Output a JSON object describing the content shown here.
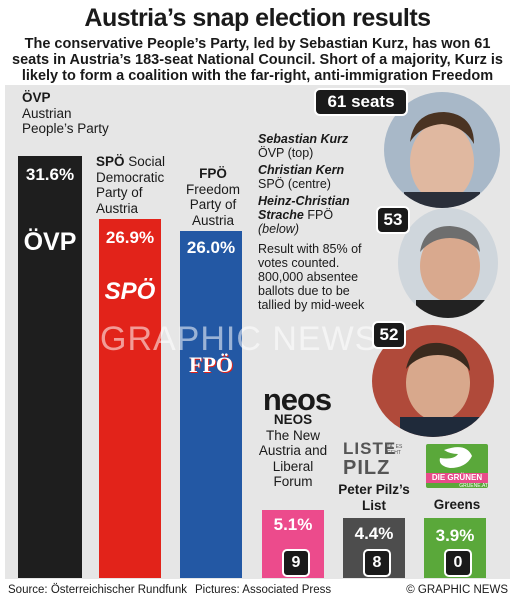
{
  "title": "Austria’s snap election results",
  "subtitle": "The conservative People’s Party, led by Sebastian Kurz, has won 61 seats in Austria’s 183-seat National Council.  Short of a majority, Kurz is likely to form a coalition with the far-right, anti-immigration Freedom Party",
  "chart_data": {
    "type": "bar",
    "categories": [
      "ÖVP",
      "SPÖ",
      "FPÖ",
      "NEOS",
      "Peter Pilz’s List",
      "Greens"
    ],
    "values": [
      31.6,
      26.9,
      26.0,
      5.1,
      4.4,
      3.9
    ],
    "value_labels": [
      "31.6%",
      "26.9%",
      "26.0%",
      "5.1%",
      "4.4%",
      "3.9%"
    ],
    "seats": [
      "61 seats",
      "53",
      "52",
      "9",
      "8",
      "0"
    ],
    "colors": [
      "#1e1e1e",
      "#e2231a",
      "#2358a4",
      "#ec4b8c",
      "#4d4d4d",
      "#5aa83a"
    ],
    "ylim": [
      0,
      31.6
    ]
  },
  "parties": {
    "ovp": {
      "abbr": "ÖVP",
      "name": "Austrian People’s Party",
      "logo": "ÖVP"
    },
    "spo": {
      "abbr": "SPÖ",
      "name": "Social Democratic Party of Austria",
      "logo": "SPÖ"
    },
    "fpo": {
      "abbr": "FPÖ",
      "name": "Freedom Party of Austria",
      "logo": "FPÖ"
    },
    "neos": {
      "logo": "neos",
      "line1": "NEOS",
      "line2": "The New Austria and Liberal Forum"
    },
    "pilz": {
      "logo1": "LISTE",
      "logo2": "PILZ",
      "logo_note": "JA, ES GEHT",
      "name": "Peter Pilz’s List"
    },
    "greens": {
      "logo": "DIE GRÜNEN",
      "logo_sub": "GRUENE.AT",
      "name": "Greens"
    }
  },
  "leaders": {
    "kurz_name": "Sebastian Kurz",
    "kurz_info": "ÖVP (top)",
    "kern_name": "Christian Kern",
    "kern_info": "SPÖ (centre)",
    "strache_name": "Heinz-Christian Strache",
    "strache_party": "FPÖ",
    "strache_info": "(below)"
  },
  "note": "Result with 85% of votes counted. 800,000 absentee ballots due to be tallied by mid-week",
  "watermark": "GRAPHIC NEWS",
  "footer": {
    "source": "Source: Österreichischer Rundfunk",
    "pictures": "Pictures: Associated Press",
    "copyright": "© GRAPHIC NEWS"
  }
}
